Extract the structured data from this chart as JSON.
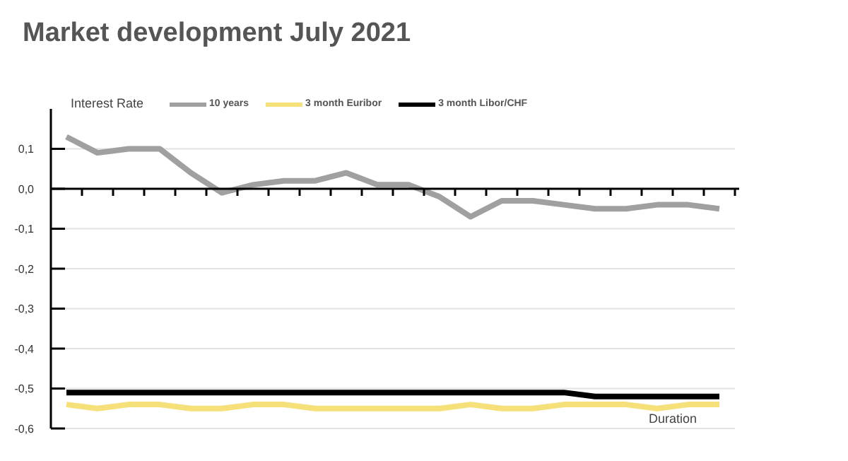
{
  "chart_data": {
    "type": "line",
    "title": "Market development July 2021",
    "ylabel": "Interest Rate",
    "xlabel": "Duration",
    "categories": [
      null,
      null,
      null,
      null,
      null,
      null,
      null,
      null,
      null,
      null,
      null,
      null,
      null,
      null,
      null,
      null,
      null,
      null,
      null,
      null,
      null,
      null
    ],
    "series": [
      {
        "name": "10 years",
        "color": "#a0a0a0",
        "values": [
          0.13,
          0.09,
          0.1,
          0.1,
          0.04,
          -0.01,
          0.01,
          0.02,
          0.02,
          0.04,
          0.01,
          0.01,
          -0.02,
          -0.07,
          -0.03,
          -0.03,
          -0.04,
          -0.05,
          -0.05,
          -0.04,
          -0.04,
          -0.05
        ]
      },
      {
        "name": "3 month Euribor",
        "color": "#f5e07a",
        "values": [
          -0.54,
          -0.55,
          -0.54,
          -0.54,
          -0.55,
          -0.55,
          -0.54,
          -0.54,
          -0.55,
          -0.55,
          -0.55,
          -0.55,
          -0.55,
          -0.54,
          -0.55,
          -0.55,
          -0.54,
          -0.54,
          -0.54,
          -0.55,
          -0.54,
          -0.54
        ]
      },
      {
        "name": "3 month Libor/CHF",
        "color": "#000000",
        "values": [
          -0.51,
          -0.51,
          -0.51,
          -0.51,
          -0.51,
          -0.51,
          -0.51,
          -0.51,
          -0.51,
          -0.51,
          -0.51,
          -0.51,
          -0.51,
          -0.51,
          -0.51,
          -0.51,
          -0.51,
          -0.52,
          -0.52,
          -0.52,
          -0.52,
          -0.52
        ]
      }
    ],
    "ylim": [
      -0.6,
      0.2
    ],
    "yticks": [
      {
        "value": 0.1,
        "label": "0,1"
      },
      {
        "value": 0,
        "label": "0,0"
      },
      {
        "value": -0.1,
        "label": "-0,1"
      },
      {
        "value": -0.2,
        "label": "-0,2"
      },
      {
        "value": -0.3,
        "label": "-0,3"
      },
      {
        "value": -0.4,
        "label": "-0,4"
      },
      {
        "value": -0.5,
        "label": "-0,5"
      },
      {
        "value": -0.6,
        "label": "-0,6"
      }
    ],
    "grid": "y",
    "legend": "top",
    "marker": "none",
    "line_style": "solid",
    "tick_labels": "y"
  }
}
